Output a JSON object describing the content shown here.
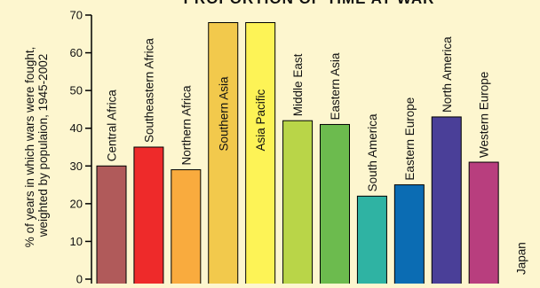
{
  "chart_data": {
    "type": "bar",
    "title": "PROPORTION OF TIME AT WAR",
    "xlabel": "",
    "ylabel": "% of years in which wars were fought, weighted by populaion, 1945-2002",
    "ylabel_lines": [
      "% of years in which wars were fought,",
      "weighted by populaion, 1945-2002"
    ],
    "ylim": [
      0,
      70
    ],
    "yticks": [
      0,
      10,
      20,
      30,
      40,
      50,
      60,
      70
    ],
    "grid": false,
    "categories": [
      "Central Africa",
      "Southeastern Africa",
      "Northern Africa",
      "Southern Asia",
      "Asia Pacific",
      "Middle East",
      "Eastern Asia",
      "South America",
      "Eastern Europe",
      "North America",
      "Western Europe",
      "Japan"
    ],
    "values": [
      30,
      35,
      29,
      68,
      68,
      42,
      41,
      22,
      25,
      43,
      31,
      0
    ],
    "colors": [
      "#b05a5a",
      "#ee2a2a",
      "#f9ab3e",
      "#f2c94c",
      "#fdf356",
      "#b9d548",
      "#6cbb4e",
      "#2fb3a3",
      "#0b6cb3",
      "#4a3f98",
      "#b83e7e",
      "#fdf6cf"
    ]
  }
}
